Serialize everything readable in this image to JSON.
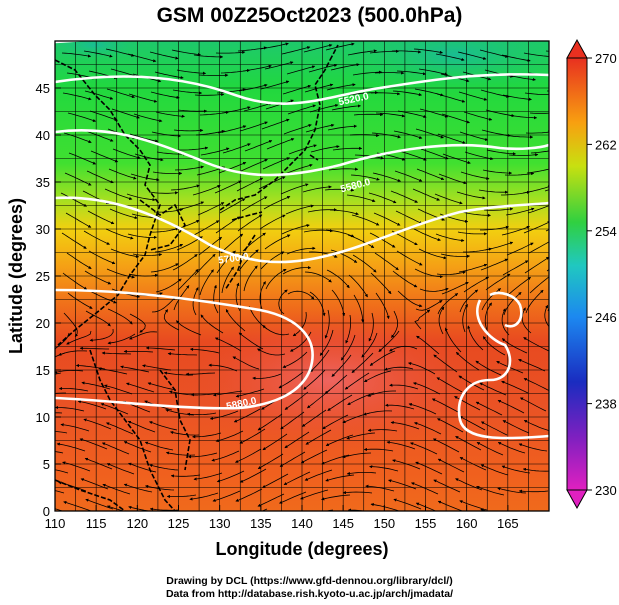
{
  "title": "GSM 00Z25Oct2023 (500.0hPa)",
  "xlabel": "Longitude (degrees)",
  "ylabel": "Latitude  (degrees)",
  "credit_line1": "Drawing by DCL (https://www.gfd-dennou.org/library/dcl/)",
  "credit_line2": "Data from http://database.rish.kyoto-u.ac.jp/arch/jmadata/",
  "chart_data": {
    "type": "heatmap",
    "variable": "500 hPa temperature (K) with wind streamlines",
    "xlim": [
      110,
      170
    ],
    "ylim": [
      0,
      50
    ],
    "x_ticks": [
      110,
      115,
      120,
      125,
      130,
      135,
      140,
      145,
      150,
      155,
      160,
      165
    ],
    "y_ticks": [
      0,
      5,
      10,
      15,
      20,
      25,
      30,
      35,
      40,
      45
    ],
    "colorbar": {
      "min": 230,
      "max": 270,
      "tick_labels": [
        "230",
        "238",
        "246",
        "254",
        "262",
        "270"
      ],
      "colors": [
        "#e020c0",
        "#1030c0",
        "#20a0ff",
        "#30d050",
        "#f0e000",
        "#ff8c00",
        "#e83020"
      ]
    },
    "contour_labels": [
      "5880.0",
      "5700.0",
      "5580.0",
      "5520.0",
      "5460.0"
    ],
    "grid": true
  }
}
